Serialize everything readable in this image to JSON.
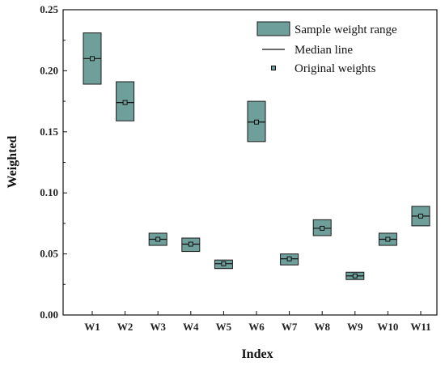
{
  "colors": {
    "box_fill": "#6f9f9b",
    "box_stroke": "#1a1a1a",
    "median": "#111111",
    "axis": "#111111"
  },
  "legend": {
    "placement": "top-right",
    "range_label": "Sample weight range",
    "median_label": "Median line",
    "original_label": "Original weights"
  },
  "chart_data": {
    "type": "box",
    "title": "",
    "xlabel": "Index",
    "ylabel": "Weighted",
    "ylim": [
      0,
      0.25
    ],
    "y_ticks": [
      0.0,
      0.05,
      0.1,
      0.15,
      0.2,
      0.25
    ],
    "y_tick_labels": [
      "0.00",
      "0.05",
      "0.10",
      "0.15",
      "0.20",
      "0.25"
    ],
    "grid": false,
    "categories": [
      "W1",
      "W2",
      "W3",
      "W4",
      "W5",
      "W6",
      "W7",
      "W8",
      "W9",
      "W10",
      "W11"
    ],
    "series": [
      {
        "name": "Sample weight range",
        "low": [
          0.189,
          0.159,
          0.057,
          0.052,
          0.038,
          0.142,
          0.041,
          0.065,
          0.029,
          0.057,
          0.073
        ],
        "high": [
          0.231,
          0.191,
          0.067,
          0.063,
          0.045,
          0.175,
          0.05,
          0.078,
          0.035,
          0.067,
          0.089
        ]
      },
      {
        "name": "Median line",
        "values": [
          0.21,
          0.174,
          0.062,
          0.058,
          0.042,
          0.158,
          0.046,
          0.071,
          0.032,
          0.062,
          0.081
        ]
      },
      {
        "name": "Original weights",
        "values": [
          0.21,
          0.174,
          0.062,
          0.058,
          0.042,
          0.158,
          0.046,
          0.071,
          0.032,
          0.062,
          0.081
        ]
      }
    ]
  }
}
